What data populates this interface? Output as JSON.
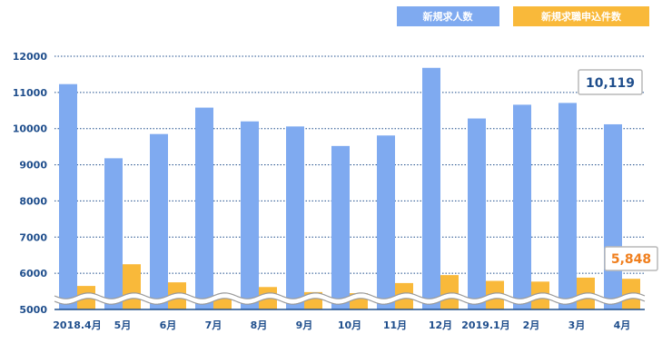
{
  "chart_data": {
    "type": "bar",
    "categories": [
      "2018.4月",
      "5月",
      "6月",
      "7月",
      "8月",
      "9月",
      "10月",
      "11月",
      "12月",
      "2019.1月",
      "2月",
      "3月",
      "4月"
    ],
    "series": [
      {
        "name": "新規求人数",
        "color": "#7faaf0",
        "values": [
          11230,
          9180,
          9850,
          10580,
          10200,
          10060,
          9520,
          9810,
          11680,
          10280,
          10660,
          10710,
          10119
        ]
      },
      {
        "name": "新規求職申込件数",
        "color": "#f9b93a",
        "values": [
          5650,
          6250,
          5750,
          5380,
          5620,
          5480,
          5450,
          5730,
          5950,
          5790,
          5770,
          5880,
          5848
        ]
      }
    ],
    "ylim": [
      5000,
      12000
    ],
    "yticks": [
      5000,
      6000,
      7000,
      8000,
      9000,
      10000,
      11000,
      12000
    ],
    "grid": true,
    "legend_position": "top-right",
    "annotations": [
      {
        "text": "10,119",
        "series": 0,
        "category": "4月"
      },
      {
        "text": "5,848",
        "series": 1,
        "category": "4月"
      }
    ]
  }
}
